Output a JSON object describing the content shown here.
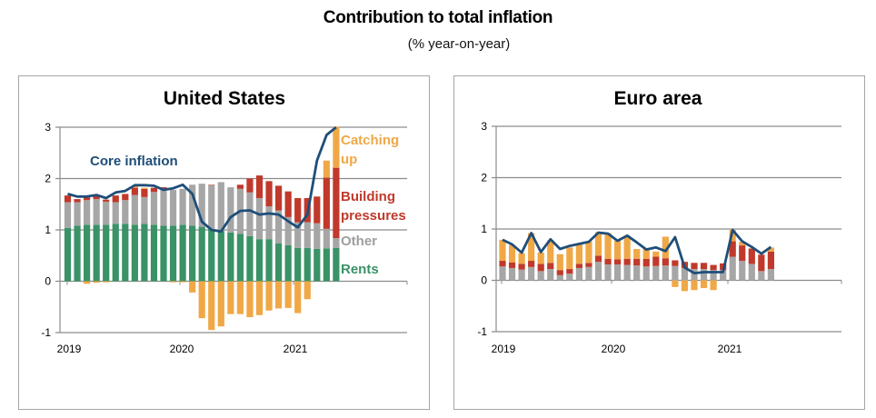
{
  "title": "Contribution to total inflation",
  "subtitle": "(% year-on-year)",
  "colors": {
    "rents": "#3a9267",
    "other": "#a6a6a6",
    "building_pressures": "#c0392b",
    "catching_up": "#f0a847",
    "core_inflation": "#1f4e79"
  },
  "chart_data": [
    {
      "type": "bar",
      "stacked": true,
      "title": "United States",
      "xlabel": "",
      "ylabel": "",
      "ylim": [
        -1,
        3
      ],
      "yticks": [
        "3",
        "2",
        "1",
        "0",
        "-1"
      ],
      "xticks": [
        "2019",
        "2020",
        "2021"
      ],
      "grid": true,
      "period_count": 29,
      "annotations": {
        "core_inflation": "Core inflation",
        "catching_up": "Catching up",
        "building_pressures": "Building pressures",
        "other": "Other",
        "rents": "Rents"
      },
      "series": [
        {
          "name": "Rents",
          "key": "rents",
          "values": [
            1.04,
            1.08,
            1.1,
            1.1,
            1.1,
            1.12,
            1.12,
            1.1,
            1.12,
            1.1,
            1.08,
            1.08,
            1.1,
            1.08,
            1.06,
            1.02,
            0.98,
            0.95,
            0.92,
            0.88,
            0.82,
            0.82,
            0.74,
            0.7,
            0.65,
            0.65,
            0.63,
            0.64,
            0.65
          ]
        },
        {
          "name": "Other",
          "key": "other",
          "values": [
            0.5,
            0.46,
            0.48,
            0.5,
            0.45,
            0.42,
            0.46,
            0.58,
            0.52,
            0.64,
            0.7,
            0.7,
            0.7,
            0.8,
            0.84,
            0.85,
            0.95,
            0.88,
            0.88,
            0.85,
            0.8,
            0.64,
            0.64,
            0.55,
            0.5,
            0.5,
            0.5,
            0.38,
            0.19
          ]
        },
        {
          "name": "Building pressures",
          "key": "building_pressures",
          "values": [
            0.13,
            0.06,
            0.06,
            0.06,
            0.04,
            0.13,
            0.12,
            0.14,
            0.16,
            0.08,
            0.05,
            0.0,
            0.0,
            0.0,
            0.0,
            0.01,
            0.0,
            0.0,
            0.08,
            0.27,
            0.44,
            0.49,
            0.48,
            0.5,
            0.47,
            0.47,
            0.52,
            1.0,
            1.37
          ]
        },
        {
          "name": "Catching up",
          "key": "catching_up",
          "values": [
            0.0,
            0.0,
            -0.05,
            -0.03,
            -0.02,
            0.0,
            0.0,
            0.03,
            0.02,
            0.0,
            0.0,
            -0.02,
            -0.02,
            -0.22,
            -0.72,
            -0.95,
            -0.88,
            -0.64,
            -0.64,
            -0.7,
            -0.66,
            -0.57,
            -0.53,
            -0.52,
            -0.62,
            -0.35,
            0.0,
            0.33,
            0.8
          ]
        }
      ],
      "line": {
        "name": "Core inflation",
        "values": [
          1.7,
          1.65,
          1.65,
          1.68,
          1.62,
          1.73,
          1.76,
          1.87,
          1.87,
          1.86,
          1.78,
          1.81,
          1.88,
          1.7,
          1.16,
          1.0,
          0.97,
          1.25,
          1.37,
          1.38,
          1.3,
          1.32,
          1.3,
          1.17,
          1.05,
          1.3,
          2.35,
          2.85,
          3.05
        ]
      }
    },
    {
      "type": "bar",
      "stacked": true,
      "title": "Euro area",
      "xlabel": "",
      "ylabel": "",
      "ylim": [
        -1,
        3
      ],
      "yticks": [
        "3",
        "2",
        "1",
        "0",
        "-1"
      ],
      "xticks": [
        "2019",
        "2020",
        "2021"
      ],
      "grid": true,
      "period_count": 29,
      "series": [
        {
          "name": "Rents",
          "key": "rents",
          "values": [
            0,
            0,
            0,
            0,
            0,
            0,
            0,
            0,
            0,
            0,
            0,
            0,
            0,
            0,
            0,
            0,
            0,
            0,
            0,
            0,
            0,
            0,
            0,
            0,
            0,
            0,
            0,
            0,
            0
          ]
        },
        {
          "name": "Other",
          "key": "other",
          "values": [
            0.27,
            0.24,
            0.21,
            0.26,
            0.18,
            0.22,
            0.1,
            0.13,
            0.24,
            0.26,
            0.36,
            0.31,
            0.31,
            0.3,
            0.29,
            0.27,
            0.28,
            0.29,
            0.28,
            0.24,
            0.22,
            0.22,
            0.2,
            0.2,
            0.46,
            0.38,
            0.32,
            0.18,
            0.22
          ]
        },
        {
          "name": "Building pressures",
          "key": "building_pressures",
          "values": [
            0.11,
            0.11,
            0.11,
            0.12,
            0.14,
            0.12,
            0.1,
            0.09,
            0.08,
            0.08,
            0.12,
            0.11,
            0.1,
            0.12,
            0.13,
            0.15,
            0.18,
            0.14,
            0.11,
            0.12,
            0.12,
            0.12,
            0.1,
            0.13,
            0.3,
            0.3,
            0.3,
            0.32,
            0.34
          ]
        },
        {
          "name": "Catching up",
          "key": "catching_up",
          "values": [
            0.41,
            0.34,
            0.21,
            0.54,
            0.22,
            0.44,
            0.31,
            0.42,
            0.39,
            0.42,
            0.46,
            0.5,
            0.36,
            0.45,
            0.19,
            0.21,
            0.1,
            0.42,
            -0.13,
            -0.21,
            -0.19,
            -0.15,
            -0.19,
            0.0,
            0.22,
            0.07,
            0.0,
            0.0,
            0.08
          ]
        }
      ],
      "line": {
        "name": "Core inflation",
        "values": [
          0.79,
          0.7,
          0.54,
          0.92,
          0.55,
          0.8,
          0.61,
          0.67,
          0.71,
          0.75,
          0.93,
          0.91,
          0.77,
          0.87,
          0.74,
          0.6,
          0.64,
          0.57,
          0.84,
          0.25,
          0.14,
          0.16,
          0.16,
          0.16,
          0.98,
          0.76,
          0.65,
          0.52,
          0.65
        ]
      }
    }
  ]
}
